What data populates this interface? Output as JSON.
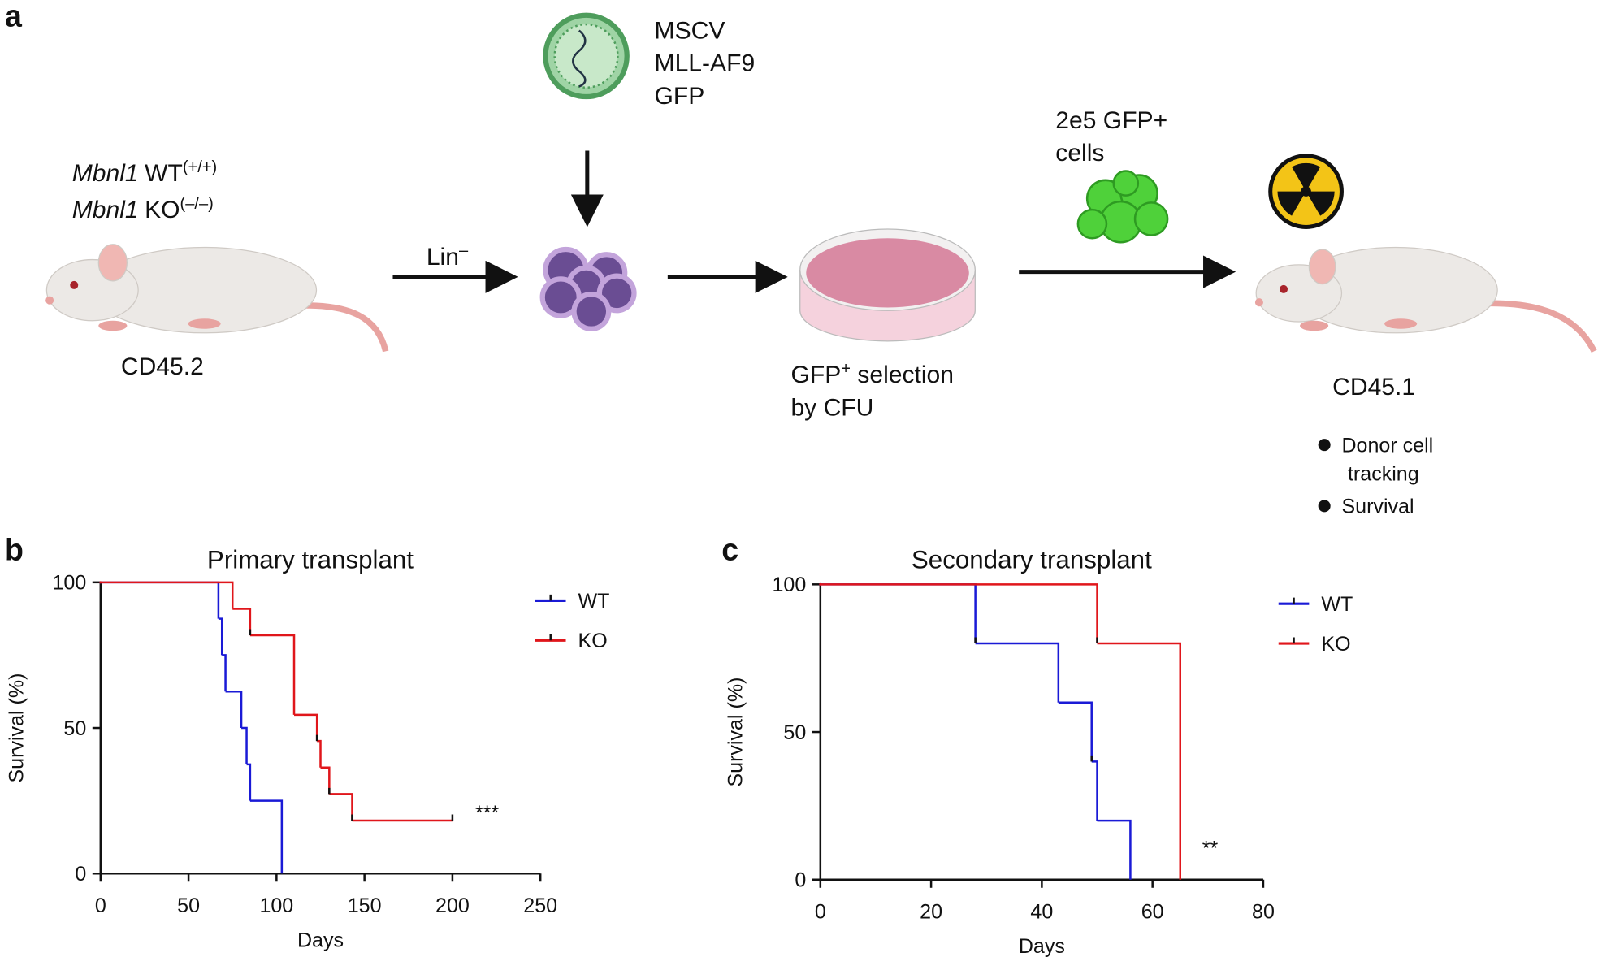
{
  "diagram": {
    "label": "a",
    "genotypes": [
      {
        "gene": "Mbnl1",
        "name": "WT",
        "sup": "(+/+)"
      },
      {
        "gene": "Mbnl1",
        "name": "KO",
        "sup": "(–/–)"
      }
    ],
    "donor": "CD45.2",
    "lin": {
      "text": "Lin",
      "sup": "–"
    },
    "vector": [
      "MSCV",
      "MLL-AF9",
      "GFP"
    ],
    "selection": {
      "text": "GFP",
      "sup": "+",
      "rest": " selection",
      "line2": "by CFU"
    },
    "cells": [
      "2e5 GFP+",
      "cells"
    ],
    "recipient": "CD45.1",
    "readouts": [
      [
        "Donor cell",
        "tracking"
      ],
      [
        "Survival"
      ]
    ]
  },
  "chart_data": [
    {
      "type": "line",
      "label": "b",
      "title": "Primary transplant",
      "xlabel": "Days",
      "ylabel": "Survival (%)",
      "xlim": [
        0,
        250
      ],
      "xticks": [
        0,
        50,
        100,
        150,
        200,
        250
      ],
      "ylim": [
        0,
        100
      ],
      "yticks": [
        0,
        50,
        100
      ],
      "legend": "right",
      "annotation": "***",
      "series": [
        {
          "name": "WT",
          "color": "#1a1ad6",
          "x": [
            0,
            67,
            69,
            71,
            80,
            83,
            85,
            103
          ],
          "values": [
            100,
            87.5,
            75,
            62.5,
            50,
            37.5,
            25,
            0
          ],
          "censored": {
            "x": [],
            "values": []
          }
        },
        {
          "name": "KO",
          "color": "#e0161b",
          "x": [
            0,
            75,
            85,
            110,
            123,
            125,
            130,
            143,
            200
          ],
          "values": [
            100,
            90.9,
            81.8,
            54.5,
            45.5,
            36.4,
            27.3,
            18.2,
            18.2
          ],
          "censored": {
            "x": [
              85,
              123,
              130,
              143,
              200
            ],
            "values": [
              81.8,
              45.5,
              27.3,
              18.2,
              18.2
            ]
          }
        }
      ]
    },
    {
      "type": "line",
      "label": "c",
      "title": "Secondary transplant",
      "xlabel": "Days",
      "ylabel": "Survival (%)",
      "xlim": [
        0,
        80
      ],
      "xticks": [
        0,
        20,
        40,
        60,
        80
      ],
      "ylim": [
        0,
        100
      ],
      "yticks": [
        0,
        50,
        100
      ],
      "legend": "right",
      "annotation": "**",
      "series": [
        {
          "name": "WT",
          "color": "#1a1ad6",
          "x": [
            0,
            28,
            43,
            49,
            50,
            56
          ],
          "values": [
            100,
            80,
            60,
            40,
            20,
            0
          ],
          "censored": {
            "x": [
              28,
              49
            ],
            "values": [
              80,
              40
            ]
          }
        },
        {
          "name": "KO",
          "color": "#e0161b",
          "x": [
            0,
            50,
            65
          ],
          "values": [
            100,
            80,
            0
          ],
          "censored": {
            "x": [
              50
            ],
            "values": [
              80
            ]
          }
        }
      ]
    }
  ]
}
